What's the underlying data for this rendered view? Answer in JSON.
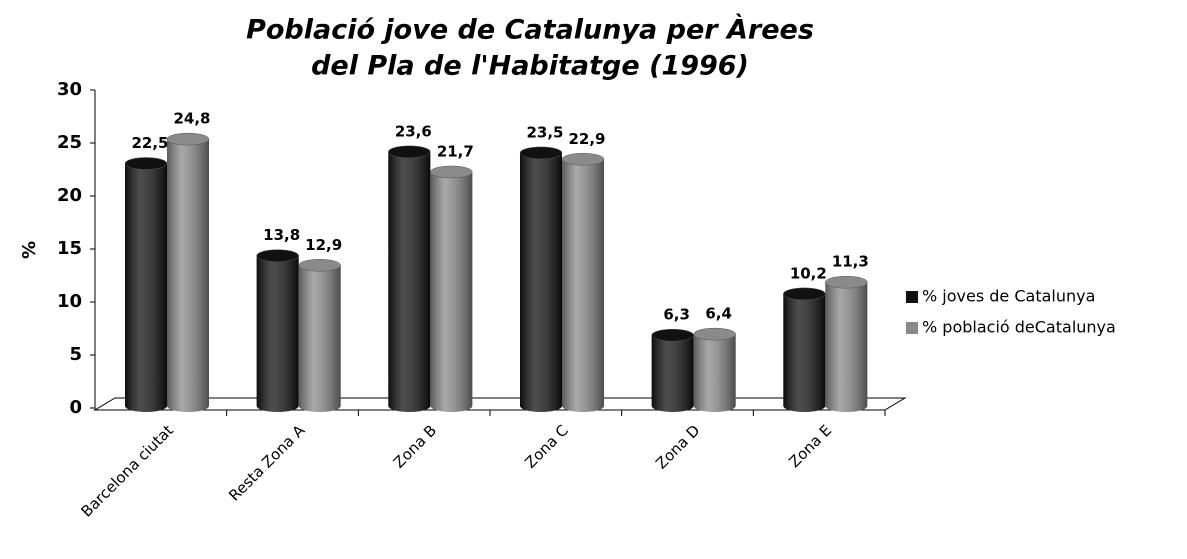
{
  "chart_data": {
    "type": "bar3d",
    "title": [
      "Població jove de Catalunya per Àrees",
      "del Pla de l'Habitatge (1996)"
    ],
    "y_label": "%",
    "categories": [
      "Barcelona ciutat",
      "Resta Zona A",
      "Zona B",
      "Zona C",
      "Zona D",
      "Zona E"
    ],
    "series": [
      {
        "name": "% joves de Catalunya",
        "color": "#111111",
        "values": [
          22.5,
          13.8,
          23.6,
          23.5,
          6.3,
          10.2
        ],
        "value_labels": [
          "22,5",
          "13,8",
          "23,6",
          "23,5",
          "6,3",
          "10,2"
        ]
      },
      {
        "name": "% població deCatalunya",
        "color": "#8a8a8a",
        "values": [
          24.8,
          12.9,
          21.7,
          22.9,
          6.4,
          11.3
        ],
        "value_labels": [
          "24,8",
          "12,9",
          "21,7",
          "22,9",
          "6,4",
          "11,3"
        ]
      }
    ],
    "ylim": [
      0,
      30
    ],
    "yticks": [
      0,
      5,
      10,
      15,
      20,
      25,
      30
    ],
    "legend": "right"
  }
}
